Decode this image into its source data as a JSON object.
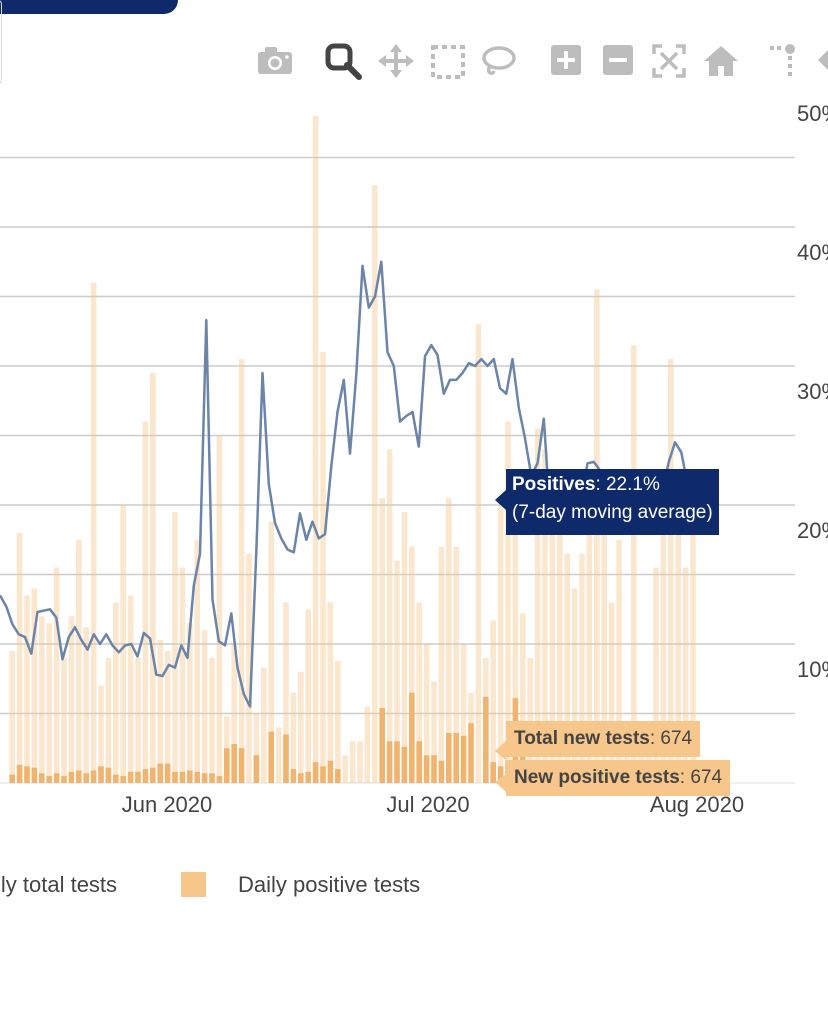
{
  "colors": {
    "brand_navy": "#0f2a6b",
    "bar_fill": "#f6c68b",
    "line": "#6b84a8",
    "grid": "#cccccc",
    "text": "#444444"
  },
  "modebar": {
    "buttons": [
      "camera-icon",
      "zoom-icon",
      "pan-icon",
      "box-select-icon",
      "lasso-select-icon",
      "zoom-in-icon",
      "zoom-out-icon",
      "autoscale-icon",
      "reset-axes-icon",
      "spike-lines-icon"
    ]
  },
  "legend": {
    "items": [
      {
        "label": "Daily total tests",
        "shown_label": "ily total tests",
        "color": "#ebebeb"
      },
      {
        "label": "Daily positive tests",
        "shown_label": "Daily positive tests",
        "color": "#f6c68b"
      }
    ]
  },
  "tooltips": {
    "positives": {
      "key": "Positives",
      "value": ": 22.1%",
      "note": "(7-day moving average)"
    },
    "total": {
      "key": "Total new tests",
      "value": ": 674"
    },
    "new_positive": {
      "key": "New positive tests",
      "value": ": 674"
    }
  },
  "chart_data": {
    "type": "bar",
    "x_ticks": [
      "Jun 2020",
      "Jul 2020",
      "Aug 2020"
    ],
    "y_ticks": [
      "10%",
      "20%",
      "30%",
      "40%",
      "50%"
    ],
    "y_axis": "right",
    "ylim_percent": [
      0,
      50
    ],
    "series": [
      {
        "name": "Daily total tests",
        "type": "bar",
        "values": [
          0,
          9.5,
          18,
          13.5,
          14,
          12,
          11.5,
          15.5,
          9,
          12,
          17.5,
          11.2,
          36,
          7,
          9,
          13,
          20,
          13.5,
          9,
          26,
          29.5,
          10.3,
          9.5,
          19.5,
          15.5,
          11.5,
          17.5,
          11,
          9,
          25,
          4.8,
          10.1,
          30.5,
          16.5,
          5,
          8.3,
          18.8,
          4,
          13,
          6.5,
          8,
          12.5,
          48,
          31,
          13,
          8.8,
          2,
          3,
          3,
          5.5,
          43,
          20.5,
          24,
          16,
          19.5,
          17,
          13,
          10,
          7.3,
          17,
          20.5,
          17,
          10,
          6.5,
          33,
          9,
          11.7,
          20,
          26,
          18,
          12.2,
          9,
          25.5,
          24,
          20.5,
          21,
          16.5,
          14,
          16.5,
          21,
          35.5,
          18,
          13,
          17.5,
          4,
          31.5,
          3,
          4,
          15.5,
          18,
          30.5,
          22,
          15.5,
          21.5
        ]
      },
      {
        "name": "Daily positive tests",
        "type": "bar",
        "values": [
          0,
          0.6,
          1.3,
          1.2,
          1.1,
          0.7,
          0.5,
          0.7,
          0.5,
          0.8,
          0.9,
          0.7,
          0.9,
          1.2,
          1.1,
          0.6,
          0.5,
          0.8,
          0.8,
          1,
          1.1,
          1.4,
          1.4,
          0.8,
          0.8,
          0.9,
          0.8,
          0.7,
          0.7,
          0.5,
          2.5,
          2.8,
          2.5,
          0,
          2,
          0,
          3.7,
          0,
          3.5,
          1,
          0.7,
          0.8,
          1.5,
          1.2,
          1.6,
          1,
          0,
          0,
          0,
          0,
          0,
          5.4,
          3,
          3,
          2.6,
          6.5,
          3,
          2,
          2,
          1.6,
          3.6,
          3.6,
          3.4,
          4.3,
          0,
          6.2,
          1.5,
          1.2,
          1.6,
          6.1,
          3.7,
          0,
          0,
          0,
          0,
          0,
          0,
          0,
          0,
          0,
          0,
          0,
          0,
          0,
          0,
          0,
          0,
          0,
          0,
          0,
          0,
          0,
          0,
          0,
          0
        ]
      },
      {
        "name": "Positives (7-day moving average)",
        "type": "line",
        "values": [
          13.5,
          12.7,
          11.4,
          10.7,
          10.5,
          9.3,
          12.3,
          12.4,
          12.5,
          11.9,
          8.9,
          10.5,
          11.2,
          10.3,
          9.6,
          10.7,
          10,
          10.7,
          9.9,
          9.4,
          9.9,
          10,
          9.1,
          10.8,
          10.4,
          7.8,
          7.7,
          8.5,
          8.3,
          9.9,
          9,
          14.2,
          16.5,
          33.3,
          13.2,
          10.2,
          9.9,
          12.2,
          8.3,
          6.4,
          5.5,
          16.6,
          29.5,
          21.5,
          18.7,
          17.6,
          16.8,
          16.6,
          19.4,
          17.5,
          18.8,
          17.6,
          17.9,
          22.8,
          26.7,
          29,
          23.7,
          29.4,
          37.2,
          34.2,
          35,
          37.5,
          31,
          30,
          26,
          26.4,
          26.7,
          24.2,
          30.7,
          31.5,
          30.8,
          28,
          29,
          29,
          29.5,
          30.2,
          30,
          30.5,
          30,
          30.5,
          28.4,
          28,
          30.5,
          27,
          24.8,
          22.1,
          23,
          26.2,
          19.5,
          20.5,
          21.5,
          22.5,
          21,
          20.5,
          23,
          23.1,
          22.5,
          21.9,
          21.5,
          20.5,
          21.3,
          21.8,
          21.3,
          21.5,
          21.2,
          19.7,
          21,
          23.1,
          24.5,
          23.8,
          21.5,
          22.1
        ]
      }
    ]
  }
}
